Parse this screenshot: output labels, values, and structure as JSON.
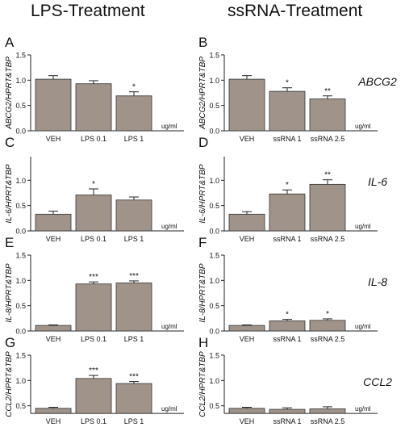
{
  "columns": [
    "LPS-Treatment",
    "ssRNA-Treatment"
  ],
  "unit": "ug/ml",
  "ylim": [
    0,
    1.5
  ],
  "yticks": [
    "0.0",
    "0.5",
    "1.0",
    "1.5"
  ],
  "colors": {
    "bar": "#a0948a",
    "bar_edge": "#333333",
    "axis": "#222222"
  },
  "chart_data": [
    {
      "panel": "A",
      "type": "bar",
      "gene": "ABCG2",
      "ylabel": "ABCG2/HPRT&TBP",
      "categories": [
        "VEH",
        "LPS 0.1",
        "LPS 1"
      ],
      "values": [
        1.02,
        0.93,
        0.69
      ],
      "errors": [
        0.07,
        0.06,
        0.08
      ],
      "significance": [
        "",
        "",
        "*"
      ],
      "show_ymax": true,
      "ylim": [
        0,
        1.5
      ]
    },
    {
      "panel": "B",
      "type": "bar",
      "gene": "ABCG2",
      "ylabel": "ABCG2/HPRT&TBP",
      "categories": [
        "VEH",
        "ssRNA 1",
        "ssRNA 2.5"
      ],
      "values": [
        1.02,
        0.78,
        0.63
      ],
      "errors": [
        0.07,
        0.07,
        0.06
      ],
      "significance": [
        "",
        "*",
        "**"
      ],
      "show_ymax": true,
      "ylim": [
        0,
        1.5
      ]
    },
    {
      "panel": "C",
      "type": "bar",
      "gene": "IL-6",
      "ylabel": "IL-6/HPRT&TBP",
      "categories": [
        "VEH",
        "LPS 0.1",
        "LPS 1"
      ],
      "values": [
        0.33,
        0.71,
        0.61
      ],
      "errors": [
        0.06,
        0.12,
        0.06
      ],
      "significance": [
        "",
        "*",
        ""
      ],
      "show_ymax": false,
      "ylim": [
        0,
        1.5
      ]
    },
    {
      "panel": "D",
      "type": "bar",
      "gene": "IL-6",
      "ylabel": "IL-6/HPRT&TBP",
      "categories": [
        "VEH",
        "ssRNA 1",
        "ssRNA 2.5"
      ],
      "values": [
        0.33,
        0.73,
        0.92
      ],
      "errors": [
        0.05,
        0.08,
        0.09
      ],
      "significance": [
        "",
        "*",
        "**"
      ],
      "show_ymax": false,
      "ylim": [
        0,
        1.5
      ]
    },
    {
      "panel": "E",
      "type": "bar",
      "gene": "IL-8",
      "ylabel": "IL-8/HPRT&TBP",
      "categories": [
        "VEH",
        "LPS 0.1",
        "LPS 1"
      ],
      "values": [
        0.11,
        0.93,
        0.95
      ],
      "errors": [
        0.01,
        0.04,
        0.04
      ],
      "significance": [
        "",
        "***",
        "***"
      ],
      "show_ymax": true,
      "ylim": [
        0,
        1.5
      ]
    },
    {
      "panel": "F",
      "type": "bar",
      "gene": "IL-8",
      "ylabel": "IL-8/HPRT&TBP",
      "categories": [
        "VEH",
        "ssRNA 1",
        "ssRNA 2.5"
      ],
      "values": [
        0.11,
        0.2,
        0.21
      ],
      "errors": [
        0.01,
        0.03,
        0.03
      ],
      "significance": [
        "",
        "*",
        "*"
      ],
      "show_ymax": true,
      "ylim": [
        0,
        1.5
      ]
    },
    {
      "panel": "G",
      "type": "bar",
      "gene": "CCL2",
      "ylabel": "CCL2/HPRT&TBP",
      "categories": [
        "VEH",
        "LPS 0.1",
        "LPS 1"
      ],
      "values": [
        0.45,
        1.04,
        0.94
      ],
      "errors": [
        0.02,
        0.06,
        0.04
      ],
      "significance": [
        "",
        "***",
        "***"
      ],
      "show_ymax": true,
      "ylim": [
        0.35,
        1.5
      ]
    },
    {
      "panel": "H",
      "type": "bar",
      "gene": "CCL2",
      "ylabel": "CCL2/HPRT&TBP",
      "categories": [
        "VEH",
        "ssRNA 1",
        "ssRNA 2.5"
      ],
      "values": [
        0.45,
        0.43,
        0.44
      ],
      "errors": [
        0.02,
        0.03,
        0.04
      ],
      "significance": [
        "",
        "",
        ""
      ],
      "show_ymax": true,
      "ylim": [
        0.35,
        1.5
      ]
    }
  ]
}
